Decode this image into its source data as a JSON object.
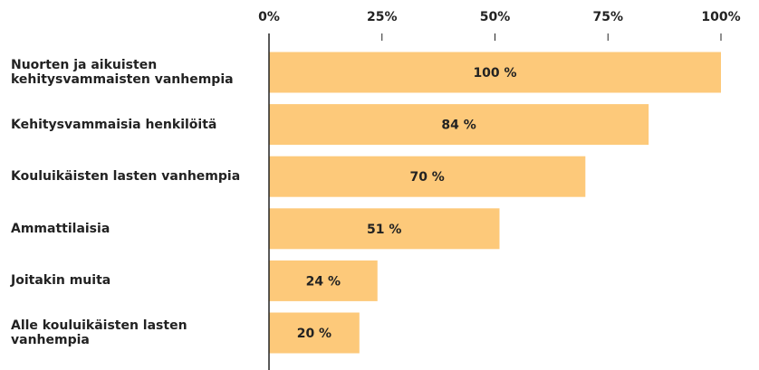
{
  "chart_data": {
    "type": "bar",
    "orientation": "horizontal",
    "color": "#fdc97a",
    "categories": [
      "Nuorten ja aikuisten\nkehitysvammaisten vanhempia",
      "Kehitysvammaisia henkilöitä",
      "Kouluikäisten lasten vanhempia",
      "Ammattilaisia",
      "Joitakin muita",
      "Alle kouluikäisten lasten\nvanhempia"
    ],
    "values": [
      100,
      84,
      70,
      51,
      24,
      20
    ],
    "value_labels": [
      "100 %",
      "84 %",
      "70 %",
      "51 %",
      "24 %",
      "20 %"
    ],
    "xlim": [
      0,
      100
    ],
    "xticks": [
      {
        "value": 0,
        "label": "0%"
      },
      {
        "value": 25,
        "label": "25%"
      },
      {
        "value": 50,
        "label": "50%"
      },
      {
        "value": 75,
        "label": "75%"
      },
      {
        "value": 100,
        "label": "100%"
      }
    ]
  }
}
